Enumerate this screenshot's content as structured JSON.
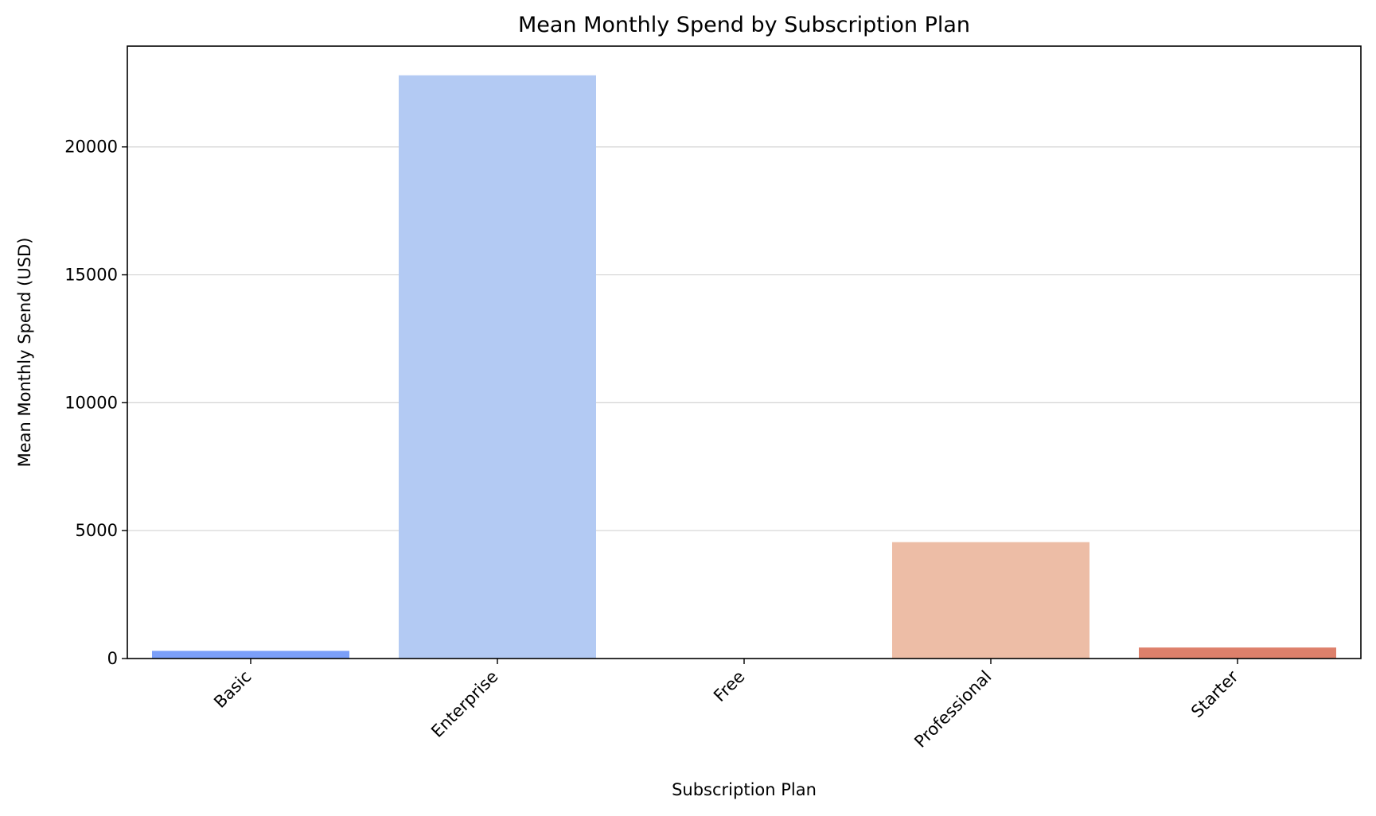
{
  "chart_data": {
    "type": "bar",
    "title": "Mean Monthly Spend by Subscription Plan",
    "xlabel": "Subscription Plan",
    "ylabel": "Mean Monthly Spend (USD)",
    "categories": [
      "Basic",
      "Enterprise",
      "Free",
      "Professional",
      "Starter"
    ],
    "values": [
      300,
      22800,
      0,
      4550,
      430
    ],
    "colors": [
      "#7B9FF9",
      "#B3CAF3",
      "#BCCDEC",
      "#EDBDA6",
      "#DD806B"
    ],
    "ylim": [
      0,
      23940
    ],
    "yticks": [
      0,
      5000,
      10000,
      15000,
      20000
    ],
    "grid": "horizontal",
    "legend": "none"
  }
}
